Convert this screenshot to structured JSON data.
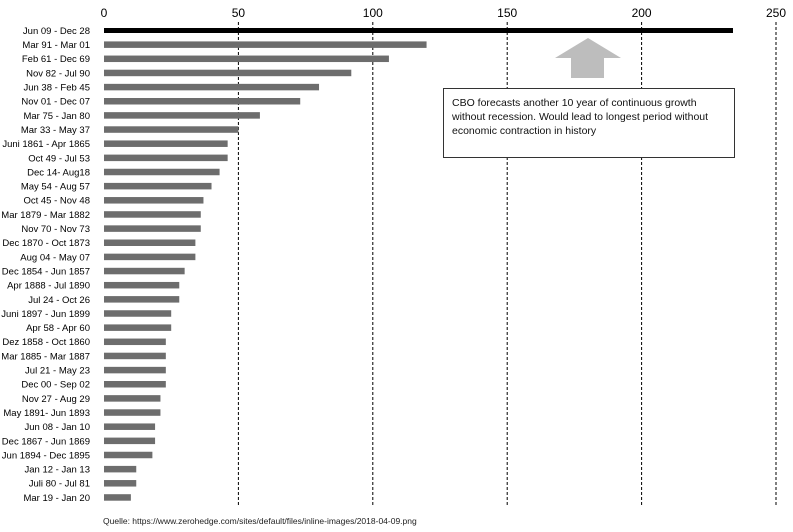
{
  "chart_data": {
    "type": "bar",
    "orientation": "horizontal",
    "categories": [
      "Jun 09 - Dec 28",
      "Mar 91 - Mar 01",
      "Feb 61 - Dec 69",
      "Nov 82 - Jul 90",
      "Jun 38 - Feb 45",
      "Nov 01 - Dec 07",
      "Mar 75 - Jan 80",
      "Mar 33 - May 37",
      "Juni 1861 - Apr 1865",
      "Oct 49 - Jul 53",
      "Dec 14- Aug18",
      "May 54 - Aug 57",
      "Oct 45  - Nov 48",
      "Mar 1879  - Mar 1882",
      "Nov 70 - Nov 73",
      "Dec 1870 - Oct 1873",
      "Aug 04  - May 07",
      "Dec 1854 - Jun 1857",
      "Apr 1888 - Jul 1890",
      "Jul 24 - Oct 26",
      "Juni 1897 - Jun 1899",
      "Apr 58 - Apr 60",
      "Dez 1858 - Oct 1860",
      "Mar 1885 - Mar 1887",
      "Jul 21 - May 23",
      "Dec 00 - Sep 02",
      "Nov 27 - Aug 29",
      "May 1891- Jun 1893",
      "Jun 08 - Jan 10",
      "Dec 1867 - Jun 1869",
      "Jun 1894 - Dec 1895",
      "Jan 12 - Jan 13",
      "Juli 80 - Jul 81",
      "Mar 19 - Jan 20"
    ],
    "values": [
      234,
      120,
      106,
      92,
      80,
      73,
      58,
      50,
      46,
      46,
      43,
      40,
      37,
      36,
      36,
      34,
      34,
      30,
      28,
      28,
      25,
      25,
      23,
      23,
      23,
      23,
      21,
      21,
      19,
      19,
      18,
      12,
      12,
      10
    ],
    "highlight_index": 0,
    "xlim": [
      0,
      250
    ],
    "xticks": [
      0,
      50,
      100,
      150,
      200,
      250
    ],
    "title": "",
    "xlabel": "",
    "ylabel": "",
    "grid": "vertical dashed",
    "colors": {
      "bar": "#6d6d6d",
      "highlight": "#000000",
      "arrow": "#bdbdbd"
    },
    "annotation": {
      "text": "CBO forecasts another 10 year of continuous growth without recession. Would lead to longest period without economic contraction in history",
      "icon": "up-arrow-icon"
    }
  },
  "source_text": "Quelle: https://www.zerohedge.com/sites/default/files/inline-images/2018-04-09.png"
}
